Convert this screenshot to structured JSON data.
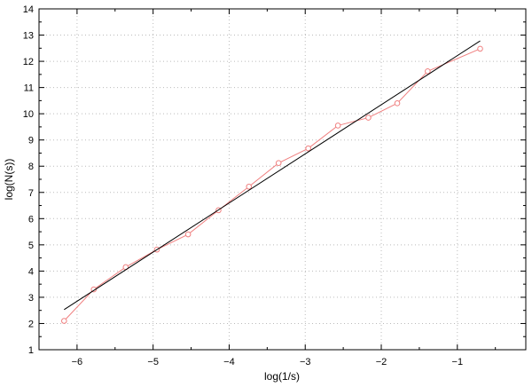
{
  "chart_data": {
    "type": "line",
    "xlabel": "log(1/s)",
    "ylabel": "log(N(s))",
    "xlim": [
      -6.5,
      -0.1
    ],
    "ylim": [
      1,
      14
    ],
    "xticks": [
      -6,
      -5,
      -4,
      -3,
      -2,
      -1
    ],
    "xtick_labels": [
      "−6",
      "−5",
      "−4",
      "−3",
      "−2",
      "−1"
    ],
    "yticks": [
      1,
      2,
      3,
      4,
      5,
      6,
      7,
      8,
      9,
      10,
      11,
      12,
      13,
      14
    ],
    "ytick_labels": [
      "1",
      "2",
      "3",
      "4",
      "5",
      "6",
      "7",
      "8",
      "9",
      "10",
      "11",
      "12",
      "13",
      "14"
    ],
    "grid": true,
    "series": [
      {
        "kind": "data",
        "color": "#f08080",
        "marker": "circle",
        "x": [
          -6.17,
          -5.78,
          -5.36,
          -4.95,
          -4.54,
          -4.14,
          -3.74,
          -3.35,
          -2.96,
          -2.57,
          -2.17,
          -1.79,
          -1.39,
          -0.7
        ],
        "y": [
          2.1,
          3.3,
          4.15,
          4.82,
          5.4,
          6.32,
          7.22,
          8.12,
          8.68,
          9.55,
          9.85,
          10.4,
          11.62,
          12.48
        ]
      },
      {
        "kind": "fit",
        "color": "#000000",
        "x": [
          -6.17,
          -0.7
        ],
        "y": [
          2.53,
          12.78
        ]
      }
    ],
    "colors": {
      "grid": "#bbbbbb",
      "frame": "#000000"
    }
  }
}
